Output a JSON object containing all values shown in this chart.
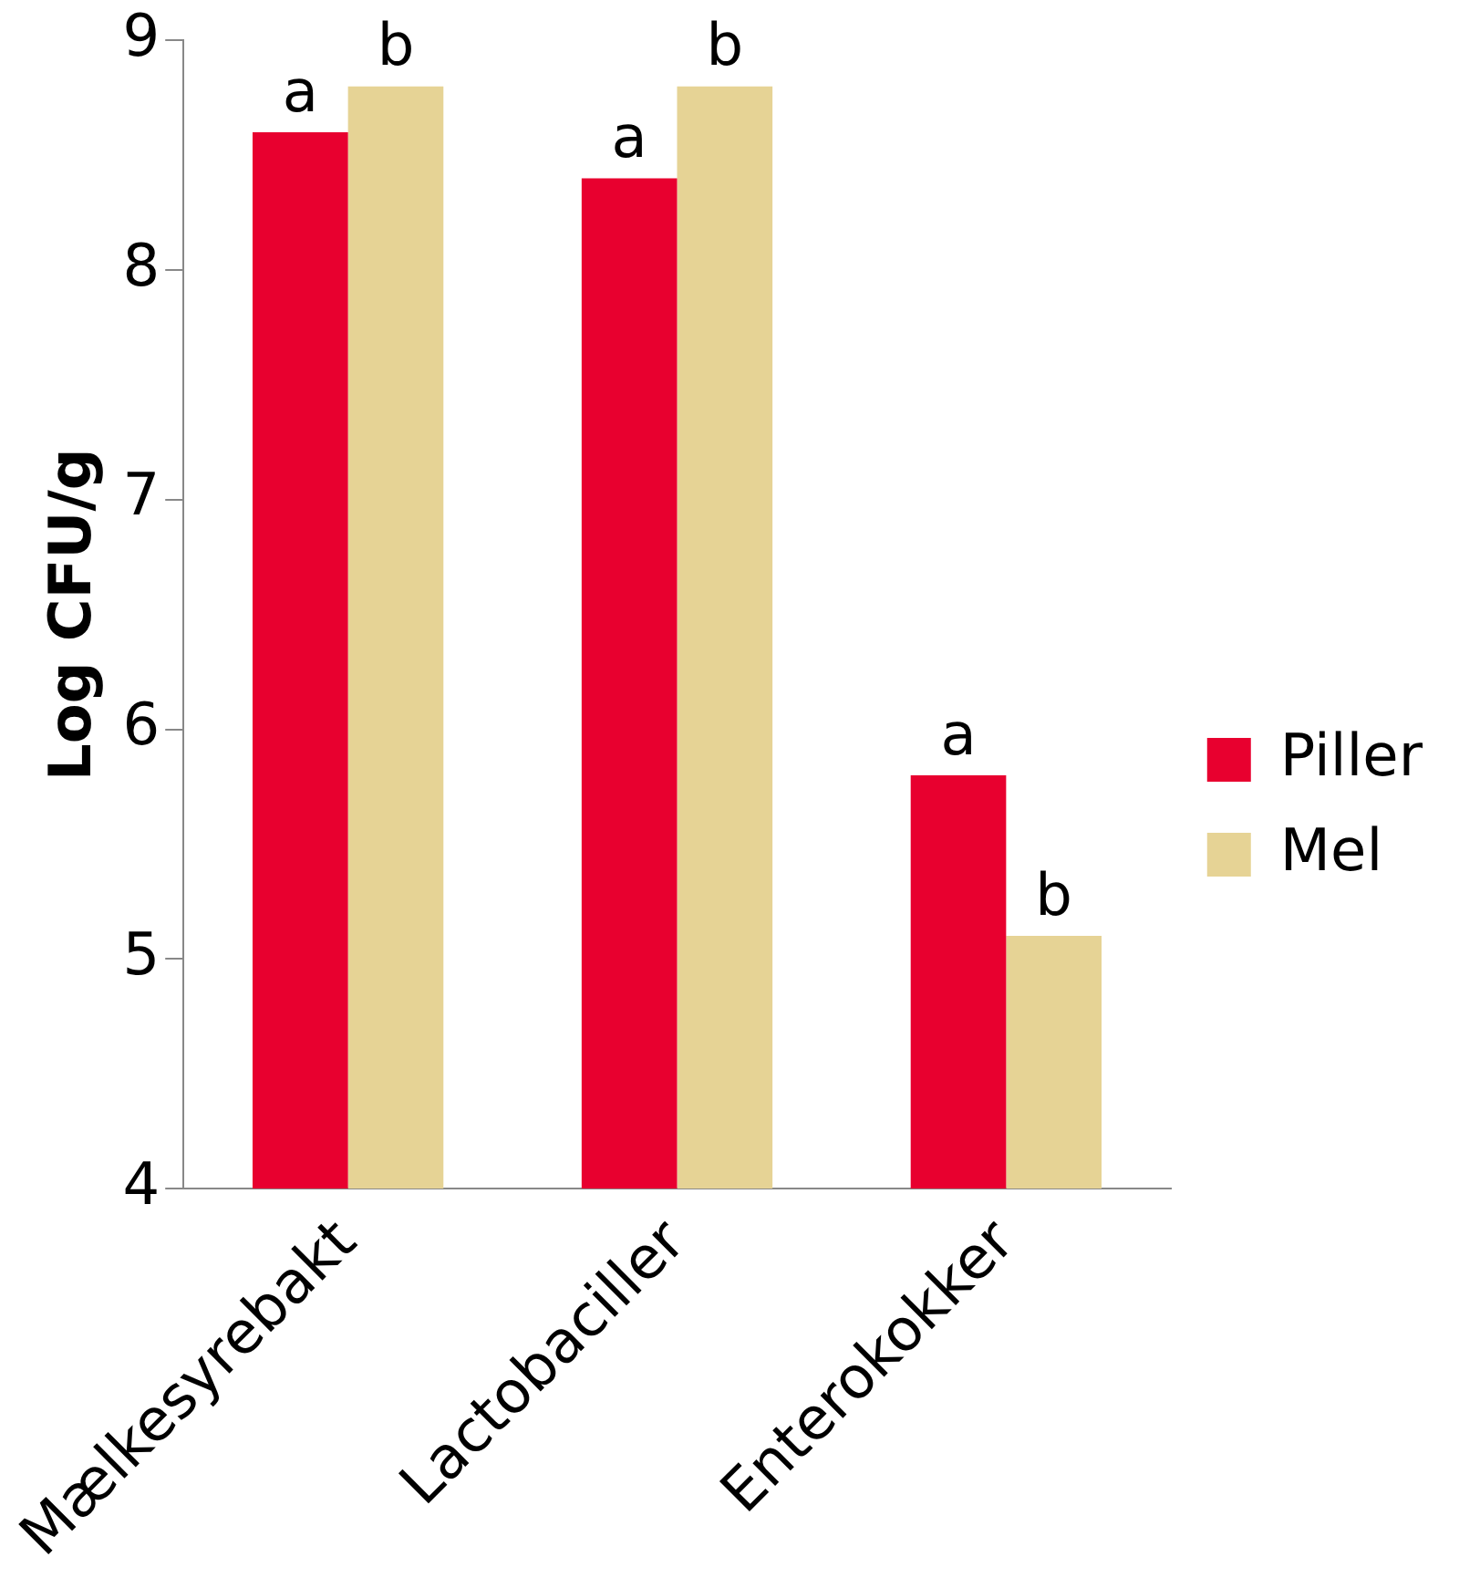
{
  "chart_data": {
    "type": "bar",
    "ylabel": "Log CFU/g",
    "categories": [
      "Mælkesyrebakt",
      "Lactobaciller",
      "Enterokokker"
    ],
    "series": [
      {
        "name": "Piller",
        "color": "#e8002f",
        "values": [
          8.6,
          8.4,
          5.8
        ]
      },
      {
        "name": "Mel",
        "color": "#e6d395",
        "values": [
          8.8,
          8.8,
          5.1
        ]
      }
    ],
    "ylim": [
      4,
      9
    ],
    "yticks": [
      4,
      5,
      6,
      7,
      8,
      9
    ],
    "grid": false,
    "legend": "right",
    "annotations": [
      {
        "text": "a",
        "x": "Mælkesyrebakt",
        "y": 8.6
      },
      {
        "text": "b",
        "x": "Mælkesyrebakt",
        "y": 8.8
      },
      {
        "text": "a",
        "x": "Lactobaciller",
        "y": 8.4
      },
      {
        "text": "b",
        "x": "Lactobaciller",
        "y": 8.8
      },
      {
        "text": "a",
        "x": "Enterokokker",
        "y": 5.8
      },
      {
        "text": "b",
        "x": "Enterokokker",
        "y": 5.1
      }
    ]
  }
}
